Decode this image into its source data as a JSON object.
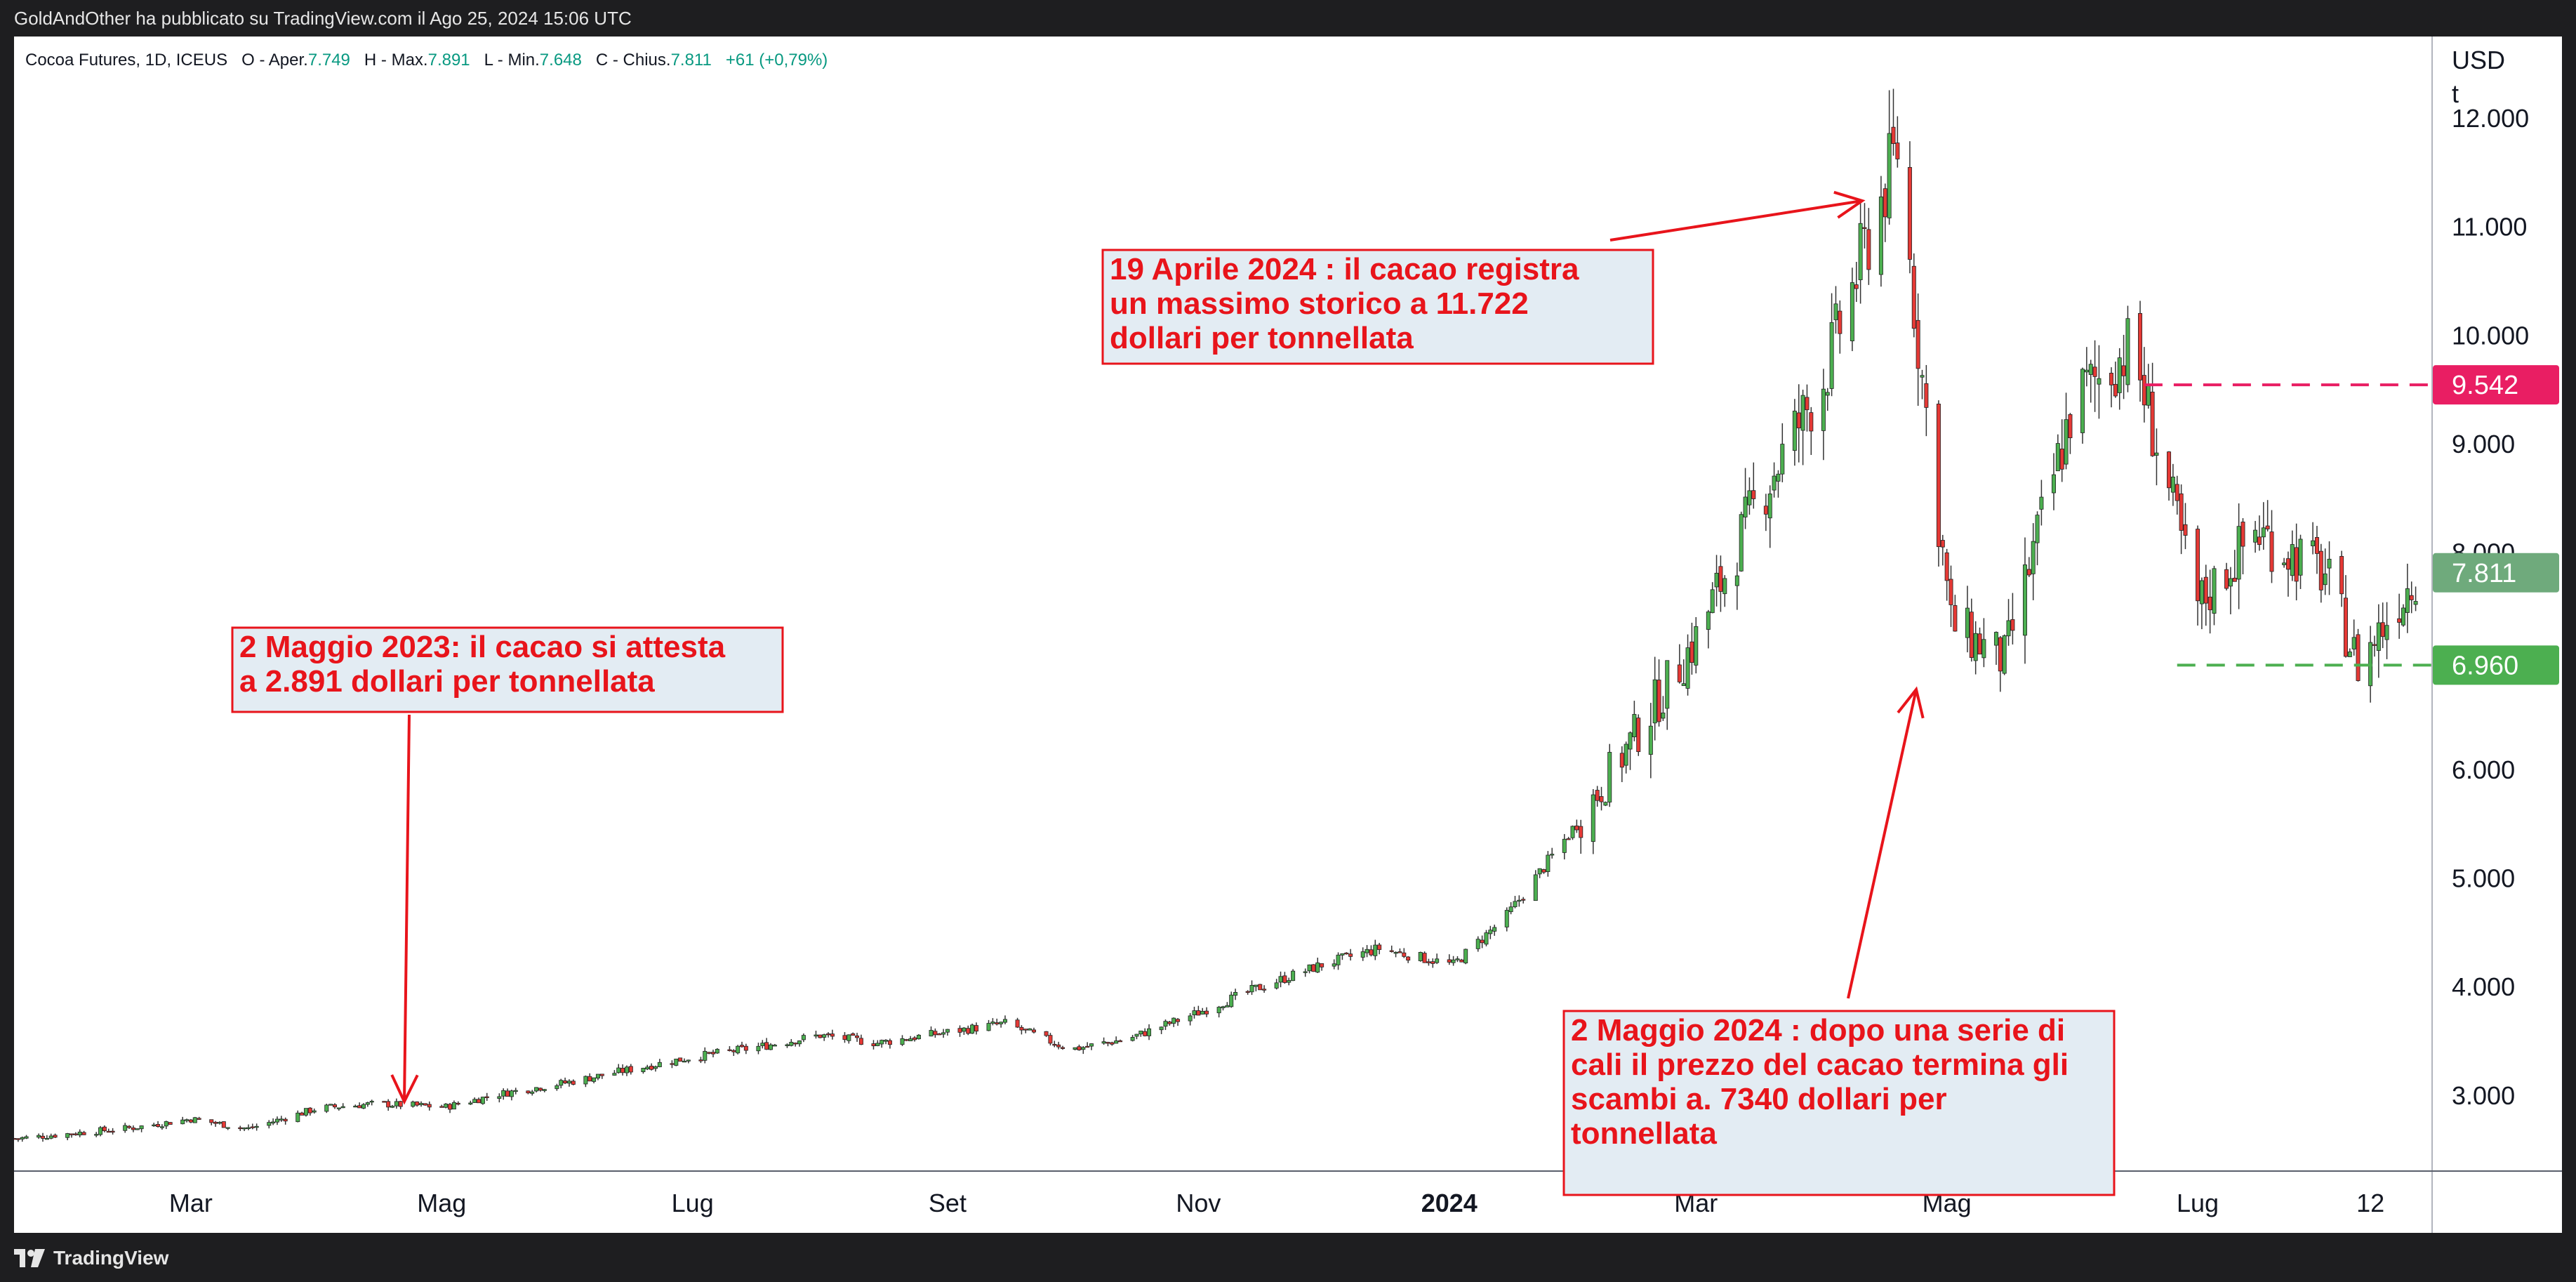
{
  "header": {
    "published": "GoldAndOther ha pubblicato su TradingView.com il Ago 25, 2024 15:06 UTC"
  },
  "legend": {
    "symbol": "Cocoa Futures, 1D, ICEUS",
    "open_label": "O - Aper.",
    "open": "7.749",
    "high_label": "H - Max.",
    "high": "7.891",
    "low_label": "L - Min.",
    "low": "7.648",
    "close_label": "C - Chius.",
    "close": "7.811",
    "change": "+61 (+0,79%)"
  },
  "footer": {
    "brand": "TradingView"
  },
  "colors": {
    "up": "#4caf50",
    "down": "#e53935",
    "annotation": "#e8141b",
    "annotation_bg": "#e3ecf3",
    "resistance": "#e91e63",
    "support": "#4caf50",
    "current": "#6faa7c"
  },
  "chart_data": {
    "type": "candlestick",
    "title": "Cocoa Futures, 1D, ICEUS",
    "currency": "USD",
    "unit": "t",
    "x_ticks": [
      "Mar",
      "Mag",
      "Lug",
      "Set",
      "Nov",
      "2024",
      "Mar",
      "Mag",
      "Lug",
      "12"
    ],
    "y_ticks": [
      "3.000",
      "4.000",
      "5.000",
      "6.000",
      "7.000",
      "8.000",
      "9.000",
      "10.000",
      "11.000",
      "12.000"
    ],
    "y_range": [
      2300,
      12750
    ],
    "series": [
      {
        "x": [
          "2023-01-18",
          "2023-02-01",
          "2023-02-15",
          "2023-03-01",
          "2023-03-15",
          "2023-04-01",
          "2023-04-15",
          "2023-05-02",
          "2023-05-15",
          "2023-06-01",
          "2023-06-15",
          "2023-07-01",
          "2023-07-15",
          "2023-08-01",
          "2023-08-15",
          "2023-09-01",
          "2023-09-15",
          "2023-10-01",
          "2023-10-15",
          "2023-11-01",
          "2023-11-15",
          "2023-12-01",
          "2023-12-15",
          "2024-01-02",
          "2024-01-15",
          "2024-02-01",
          "2024-02-15",
          "2024-03-01",
          "2024-03-15",
          "2024-04-01",
          "2024-04-19",
          "2024-04-25",
          "2024-05-02",
          "2024-05-15",
          "2024-06-01",
          "2024-06-15",
          "2024-07-01",
          "2024-07-15",
          "2024-08-01",
          "2024-08-09",
          "2024-08-23"
        ],
        "values": [
          2600,
          2650,
          2700,
          2780,
          2690,
          2880,
          2920,
          2891,
          3010,
          3120,
          3230,
          3350,
          3430,
          3550,
          3480,
          3580,
          3660,
          3420,
          3520,
          3760,
          3980,
          4200,
          4350,
          4200,
          4650,
          5500,
          6300,
          7200,
          8400,
          9600,
          11722,
          9600,
          7340,
          7000,
          9400,
          9900,
          7500,
          8200,
          7800,
          6960,
          7811
        ]
      }
    ],
    "levels": [
      {
        "label": "9.542",
        "value": 9542
      },
      {
        "label": "6.960",
        "value": 6960
      },
      {
        "label": "7.811",
        "value": 7811
      }
    ],
    "annotations": [
      {
        "lines": [
          "2 Maggio 2023: il cacao si attesta",
          "a  2.891 dollari per tonnellata"
        ]
      },
      {
        "lines": [
          "19 Aprile 2024 : il cacao registra",
          "un massimo storico a 11.722",
          "dollari per tonnellata"
        ]
      },
      {
        "lines": [
          "2 Maggio 2024 : dopo una serie di",
          "cali il prezzo del cacao termina gli",
          "scambi a. 7340 dollari per",
          "tonnellata"
        ]
      }
    ]
  }
}
